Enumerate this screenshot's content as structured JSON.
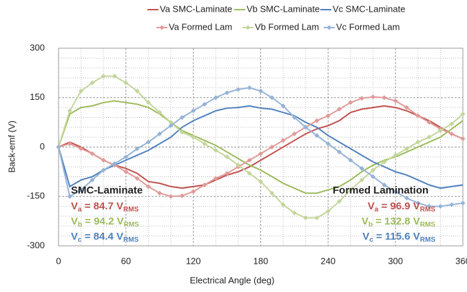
{
  "chart_data": {
    "type": "line",
    "x_label": "Electrical Angle (deg)",
    "y_label": "Back-emf (V)",
    "xlim": [
      0,
      360
    ],
    "xticks": [
      0,
      60,
      120,
      180,
      240,
      300,
      360
    ],
    "ylim": [
      -300,
      300
    ],
    "yticks": [
      -300,
      -150,
      0,
      150,
      300
    ],
    "grid": true,
    "minor_grid": true,
    "legend": "top",
    "x": [
      0,
      10,
      20,
      30,
      40,
      50,
      60,
      70,
      80,
      90,
      100,
      110,
      120,
      130,
      140,
      150,
      160,
      170,
      180,
      190,
      200,
      210,
      220,
      230,
      240,
      250,
      260,
      270,
      280,
      290,
      300,
      310,
      320,
      330,
      340,
      350,
      360
    ],
    "series": [
      {
        "name": "Va SMC-Laminate",
        "color": "#c0504d",
        "marker": false,
        "values": [
          0,
          15,
          0,
          -20,
          -40,
          -55,
          -65,
          -80,
          -105,
          -110,
          -120,
          -125,
          -120,
          -115,
          -100,
          -85,
          -75,
          -60,
          -40,
          -20,
          0,
          20,
          40,
          55,
          65,
          80,
          105,
          115,
          120,
          125,
          120,
          110,
          95,
          80,
          60,
          40,
          25
        ]
      },
      {
        "name": "Vb SMC-Laminate",
        "color": "#9bbb59",
        "marker": false,
        "values": [
          0,
          100,
          120,
          125,
          135,
          140,
          135,
          130,
          120,
          100,
          75,
          50,
          35,
          20,
          5,
          -15,
          -35,
          -55,
          -70,
          -90,
          -110,
          -125,
          -140,
          -140,
          -130,
          -120,
          -100,
          -75,
          -55,
          -40,
          -30,
          -15,
          0,
          15,
          30,
          55,
          80
        ]
      },
      {
        "name": "Vc SMC-Laminate",
        "color": "#4f81bd",
        "marker": false,
        "values": [
          0,
          -120,
          -100,
          -90,
          -70,
          -55,
          -40,
          -25,
          -10,
          10,
          30,
          60,
          80,
          95,
          110,
          118,
          120,
          125,
          118,
          115,
          105,
          95,
          75,
          60,
          35,
          15,
          -5,
          -25,
          -45,
          -60,
          -75,
          -85,
          -100,
          -115,
          -125,
          -120,
          -115
        ]
      },
      {
        "name": "Va Formed Lam",
        "color": "#e09a98",
        "marker": true,
        "values": [
          0,
          10,
          -5,
          -20,
          -40,
          -55,
          -75,
          -95,
          -120,
          -140,
          -150,
          -148,
          -135,
          -115,
          -95,
          -80,
          -60,
          -40,
          -20,
          0,
          20,
          40,
          60,
          80,
          95,
          115,
          135,
          148,
          152,
          150,
          140,
          120,
          95,
          75,
          55,
          40,
          25
        ]
      },
      {
        "name": "Vb Formed Lam",
        "color": "#c3d69b",
        "marker": true,
        "values": [
          0,
          110,
          170,
          195,
          215,
          215,
          195,
          170,
          135,
          105,
          75,
          45,
          30,
          10,
          -10,
          -30,
          -55,
          -80,
          -105,
          -140,
          -175,
          -200,
          -215,
          -215,
          -195,
          -165,
          -130,
          -100,
          -70,
          -45,
          -25,
          -5,
          15,
          30,
          50,
          70,
          100
        ]
      },
      {
        "name": "Vc Formed Lam",
        "color": "#95b3d7",
        "marker": true,
        "values": [
          0,
          -150,
          -130,
          -100,
          -70,
          -50,
          -30,
          -5,
          15,
          40,
          65,
          90,
          110,
          130,
          150,
          165,
          175,
          180,
          170,
          150,
          125,
          90,
          60,
          35,
          10,
          -15,
          -40,
          -65,
          -90,
          -115,
          -135,
          -155,
          -170,
          -180,
          -180,
          -175,
          -170
        ]
      }
    ],
    "annotations": [
      {
        "title": "SMC-Laminate",
        "lines": [
          {
            "symbol": "V",
            "sub": "a",
            "text": " = 84.7 V",
            "unit": "RMS",
            "color": "#c0504d"
          },
          {
            "symbol": "V",
            "sub": "b",
            "text": " = 94.2 V",
            "unit": "RMS",
            "color": "#9bbb59"
          },
          {
            "symbol": "V",
            "sub": "c",
            "text": " = 84.4 V",
            "unit": "RMS",
            "color": "#4f81bd"
          }
        ]
      },
      {
        "title": "Formed Lamination",
        "lines": [
          {
            "symbol": "V",
            "sub": "a",
            "text": " = 96.9 V",
            "unit": "RMS",
            "color": "#c0504d"
          },
          {
            "symbol": "V",
            "sub": "b",
            "text": " = 132.8 V",
            "unit": "RMS",
            "color": "#9bbb59"
          },
          {
            "symbol": "V",
            "sub": "c",
            "text": " = 115.6 V",
            "unit": "RMS",
            "color": "#4f81bd"
          }
        ]
      }
    ]
  }
}
